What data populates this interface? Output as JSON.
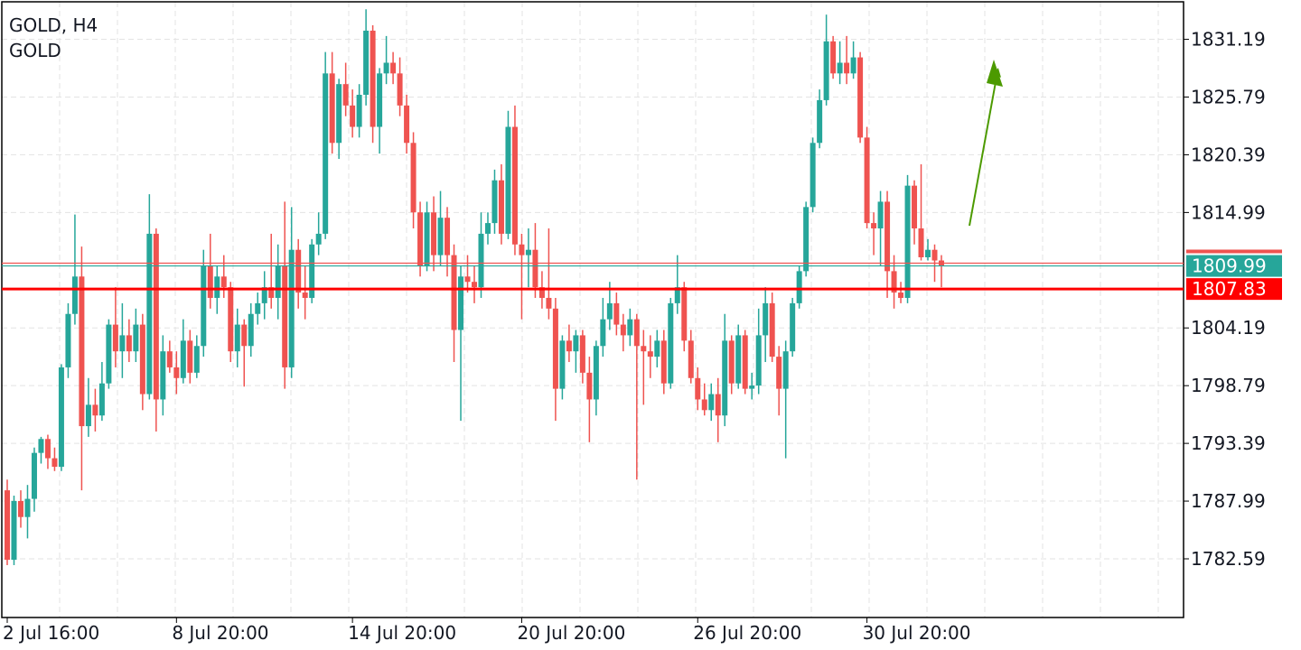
{
  "chart_data": {
    "type": "candlestick",
    "title": "GOLD, H4",
    "subtitle": "GOLD",
    "up_color": "#26a69a",
    "down_color": "#ef5350",
    "ylim": [
      1777.1,
      1834.7
    ],
    "yticks": [
      1831.19,
      1825.79,
      1820.39,
      1814.99,
      1804.19,
      1798.79,
      1793.39,
      1787.99,
      1782.59
    ],
    "grid": true,
    "ask": 1810.25,
    "price_lines": [
      {
        "value": 1809.99,
        "label": "1809.99",
        "color": "#26a69a"
      },
      {
        "value": 1807.83,
        "label": "1807.83",
        "color": "#ff0000"
      }
    ],
    "categories": [
      "2 Jul 16:00",
      null,
      null,
      null,
      null,
      null,
      null,
      null,
      null,
      null,
      null,
      null,
      null,
      null,
      null,
      null,
      null,
      null,
      null,
      null,
      null,
      null,
      null,
      null,
      null,
      "8 Jul 20:00",
      null,
      null,
      null,
      null,
      null,
      null,
      null,
      null,
      null,
      null,
      null,
      null,
      null,
      null,
      null,
      null,
      null,
      null,
      null,
      null,
      null,
      null,
      null,
      null,
      null,
      "14 Jul 20:00",
      null,
      null,
      null,
      null,
      null,
      null,
      null,
      null,
      null,
      null,
      null,
      null,
      null,
      null,
      null,
      null,
      null,
      null,
      null,
      null,
      null,
      null,
      null,
      null,
      "20 Jul 20:00",
      null,
      null,
      null,
      null,
      null,
      null,
      null,
      null,
      null,
      null,
      null,
      null,
      null,
      null,
      null,
      null,
      null,
      null,
      null,
      null,
      null,
      null,
      null,
      null,
      null,
      "26 Jul 20:00",
      null,
      null,
      null,
      null,
      null,
      null,
      null,
      null,
      null,
      null,
      null,
      null,
      null,
      null,
      null,
      null,
      null,
      null,
      null,
      null,
      null,
      null,
      null,
      null,
      "30 Jul 20:00",
      null,
      null,
      null,
      null,
      null,
      null,
      null,
      null,
      null,
      null,
      null
    ],
    "ohlc": [
      [
        1789.0,
        1790.0,
        1782.0,
        1782.5
      ],
      [
        1782.5,
        1788.5,
        1782.0,
        1788.0
      ],
      [
        1788.0,
        1789.0,
        1785.5,
        1786.5
      ],
      [
        1786.5,
        1789.5,
        1784.5,
        1788.2
      ],
      [
        1788.2,
        1793.0,
        1787.0,
        1792.5
      ],
      [
        1792.5,
        1794.0,
        1791.5,
        1793.8
      ],
      [
        1793.8,
        1794.2,
        1791.0,
        1792.0
      ],
      [
        1792.0,
        1793.0,
        1790.8,
        1791.2
      ],
      [
        1791.2,
        1800.8,
        1790.8,
        1800.5
      ],
      [
        1800.5,
        1806.5,
        1799.5,
        1805.5
      ],
      [
        1805.5,
        1814.8,
        1804.5,
        1809.0
      ],
      [
        1809.0,
        1811.8,
        1789.0,
        1795.0
      ],
      [
        1795.0,
        1799.5,
        1794.0,
        1797.0
      ],
      [
        1797.0,
        1798.5,
        1794.5,
        1796.0
      ],
      [
        1796.0,
        1801.0,
        1795.5,
        1799.0
      ],
      [
        1799.0,
        1805.0,
        1798.5,
        1804.5
      ],
      [
        1804.5,
        1808.0,
        1800.5,
        1802.0
      ],
      [
        1802.0,
        1806.5,
        1799.5,
        1803.5
      ],
      [
        1803.5,
        1805.0,
        1801.0,
        1802.0
      ],
      [
        1802.0,
        1806.0,
        1801.0,
        1804.5
      ],
      [
        1804.5,
        1805.5,
        1796.5,
        1798.0
      ],
      [
        1798.0,
        1816.7,
        1797.5,
        1813.0
      ],
      [
        1813.0,
        1813.5,
        1794.5,
        1797.5
      ],
      [
        1797.5,
        1803.5,
        1796.0,
        1802.0
      ],
      [
        1802.0,
        1803.0,
        1800.0,
        1800.5
      ],
      [
        1800.5,
        1802.0,
        1798.0,
        1799.5
      ],
      [
        1799.5,
        1805.0,
        1799.0,
        1803.0
      ],
      [
        1803.0,
        1804.0,
        1799.0,
        1800.0
      ],
      [
        1800.0,
        1803.5,
        1799.5,
        1802.5
      ],
      [
        1802.5,
        1811.5,
        1801.5,
        1810.0
      ],
      [
        1810.0,
        1813.0,
        1806.0,
        1807.0
      ],
      [
        1807.0,
        1810.0,
        1805.5,
        1809.0
      ],
      [
        1809.0,
        1811.0,
        1807.0,
        1808.0
      ],
      [
        1808.0,
        1808.5,
        1801.0,
        1802.0
      ],
      [
        1802.0,
        1806.0,
        1800.5,
        1804.5
      ],
      [
        1804.5,
        1805.0,
        1798.7,
        1802.5
      ],
      [
        1802.5,
        1806.5,
        1801.5,
        1805.5
      ],
      [
        1805.5,
        1807.5,
        1804.5,
        1806.5
      ],
      [
        1806.5,
        1809.5,
        1805.0,
        1808.0
      ],
      [
        1808.0,
        1813.0,
        1806.0,
        1807.0
      ],
      [
        1807.0,
        1812.0,
        1805.0,
        1810.0
      ],
      [
        1810.0,
        1816.0,
        1798.5,
        1800.5
      ],
      [
        1800.5,
        1815.5,
        1799.5,
        1811.5
      ],
      [
        1811.5,
        1812.5,
        1806.0,
        1807.5
      ],
      [
        1807.5,
        1810.0,
        1805.0,
        1807.0
      ],
      [
        1807.0,
        1812.5,
        1806.5,
        1812.0
      ],
      [
        1812.0,
        1815.0,
        1811.0,
        1813.0
      ],
      [
        1813.0,
        1830.0,
        1812.5,
        1828.0
      ],
      [
        1828.0,
        1830.0,
        1820.5,
        1821.5
      ],
      [
        1821.5,
        1827.5,
        1820.0,
        1827.0
      ],
      [
        1827.0,
        1829.0,
        1824.0,
        1825.0
      ],
      [
        1825.0,
        1826.5,
        1822.0,
        1823.0
      ],
      [
        1823.0,
        1827.0,
        1822.0,
        1826.0
      ],
      [
        1826.0,
        1834.0,
        1825.0,
        1832.0
      ],
      [
        1832.0,
        1832.5,
        1821.5,
        1823.0
      ],
      [
        1823.0,
        1828.5,
        1820.5,
        1828.0
      ],
      [
        1828.0,
        1831.5,
        1827.0,
        1829.0
      ],
      [
        1829.0,
        1830.0,
        1827.0,
        1828.0
      ],
      [
        1828.0,
        1829.5,
        1824.0,
        1825.0
      ],
      [
        1825.0,
        1826.0,
        1820.5,
        1821.5
      ],
      [
        1821.5,
        1822.5,
        1813.5,
        1815.0
      ],
      [
        1815.0,
        1816.0,
        1809.0,
        1810.0
      ],
      [
        1810.0,
        1816.0,
        1809.5,
        1815.0
      ],
      [
        1815.0,
        1816.5,
        1809.5,
        1811.0
      ],
      [
        1811.0,
        1817.0,
        1810.0,
        1814.5
      ],
      [
        1814.5,
        1815.5,
        1809.0,
        1811.0
      ],
      [
        1811.0,
        1812.0,
        1801.0,
        1804.0
      ],
      [
        1804.0,
        1810.0,
        1795.5,
        1809.0
      ],
      [
        1809.0,
        1811.0,
        1807.5,
        1808.5
      ],
      [
        1808.5,
        1810.0,
        1806.5,
        1808.0
      ],
      [
        1808.0,
        1815.0,
        1807.0,
        1813.0
      ],
      [
        1813.0,
        1815.0,
        1812.0,
        1814.0
      ],
      [
        1814.0,
        1819.0,
        1813.0,
        1818.0
      ],
      [
        1818.0,
        1819.5,
        1812.0,
        1813.0
      ],
      [
        1813.0,
        1824.5,
        1812.5,
        1823.0
      ],
      [
        1823.0,
        1825.0,
        1811.0,
        1812.0
      ],
      [
        1812.0,
        1813.0,
        1805.0,
        1811.0
      ],
      [
        1811.0,
        1813.5,
        1808.0,
        1811.5
      ],
      [
        1811.5,
        1814.0,
        1807.0,
        1808.0
      ],
      [
        1808.0,
        1809.5,
        1806.0,
        1807.0
      ],
      [
        1807.0,
        1813.5,
        1805.0,
        1806.0
      ],
      [
        1806.0,
        1807.0,
        1795.5,
        1798.5
      ],
      [
        1798.5,
        1803.5,
        1797.5,
        1803.0
      ],
      [
        1803.0,
        1804.5,
        1801.0,
        1802.0
      ],
      [
        1802.0,
        1804.0,
        1800.0,
        1803.5
      ],
      [
        1803.5,
        1804.0,
        1799.0,
        1800.0
      ],
      [
        1800.0,
        1801.5,
        1793.5,
        1797.5
      ],
      [
        1797.5,
        1803.0,
        1796.0,
        1802.5
      ],
      [
        1802.5,
        1807.0,
        1801.5,
        1805.0
      ],
      [
        1805.0,
        1808.5,
        1804.0,
        1806.5
      ],
      [
        1806.5,
        1807.5,
        1803.5,
        1804.5
      ],
      [
        1804.5,
        1805.5,
        1802.0,
        1803.5
      ],
      [
        1803.5,
        1806.0,
        1802.5,
        1805.0
      ],
      [
        1805.0,
        1805.5,
        1790.0,
        1802.5
      ],
      [
        1802.5,
        1804.0,
        1797.0,
        1802.0
      ],
      [
        1802.0,
        1803.5,
        1799.5,
        1801.5
      ],
      [
        1801.5,
        1804.0,
        1800.5,
        1803.0
      ],
      [
        1803.0,
        1804.0,
        1798.0,
        1799.0
      ],
      [
        1799.0,
        1807.0,
        1798.5,
        1806.5
      ],
      [
        1806.5,
        1811.0,
        1805.5,
        1808.0
      ],
      [
        1808.0,
        1808.5,
        1802.0,
        1803.0
      ],
      [
        1803.0,
        1804.0,
        1799.0,
        1799.5
      ],
      [
        1799.5,
        1800.5,
        1796.5,
        1797.5
      ],
      [
        1797.5,
        1799.0,
        1796.0,
        1796.5
      ],
      [
        1796.5,
        1799.0,
        1795.5,
        1798.0
      ],
      [
        1798.0,
        1799.5,
        1793.5,
        1796.0
      ],
      [
        1796.0,
        1805.5,
        1795.0,
        1803.0
      ],
      [
        1803.0,
        1803.5,
        1798.0,
        1799.0
      ],
      [
        1799.0,
        1804.5,
        1798.5,
        1803.5
      ],
      [
        1803.5,
        1804.0,
        1798.0,
        1798.5
      ],
      [
        1798.5,
        1800.0,
        1797.5,
        1798.8
      ],
      [
        1798.8,
        1806.0,
        1798.0,
        1803.5
      ],
      [
        1803.5,
        1808.0,
        1801.0,
        1806.5
      ],
      [
        1806.5,
        1807.5,
        1801.0,
        1801.5
      ],
      [
        1801.5,
        1802.5,
        1796.0,
        1798.5
      ],
      [
        1798.5,
        1803.0,
        1792.0,
        1802.0
      ],
      [
        1802.0,
        1807.0,
        1801.5,
        1806.5
      ],
      [
        1806.5,
        1810.0,
        1806.0,
        1809.5
      ],
      [
        1809.5,
        1816.0,
        1809.0,
        1815.5
      ],
      [
        1815.5,
        1822.0,
        1815.0,
        1821.5
      ],
      [
        1821.5,
        1826.5,
        1821.0,
        1825.5
      ],
      [
        1825.5,
        1833.5,
        1825.0,
        1831.0
      ],
      [
        1831.0,
        1831.5,
        1827.5,
        1828.0
      ],
      [
        1828.0,
        1831.0,
        1827.0,
        1829.0
      ],
      [
        1829.0,
        1831.5,
        1827.0,
        1828.0
      ],
      [
        1828.0,
        1831.0,
        1827.5,
        1829.5
      ],
      [
        1829.5,
        1830.0,
        1821.5,
        1822.0
      ],
      [
        1822.0,
        1823.0,
        1813.5,
        1814.0
      ],
      [
        1814.0,
        1815.0,
        1811.0,
        1813.5
      ],
      [
        1813.5,
        1817.0,
        1810.0,
        1816.0
      ],
      [
        1816.0,
        1817.0,
        1807.0,
        1809.5
      ],
      [
        1809.5,
        1811.0,
        1806.0,
        1807.5
      ],
      [
        1807.5,
        1808.5,
        1806.5,
        1807.0
      ],
      [
        1807.0,
        1818.5,
        1806.5,
        1817.5
      ],
      [
        1817.5,
        1818.0,
        1812.0,
        1813.5
      ],
      [
        1813.5,
        1819.5,
        1810.5,
        1810.8
      ],
      [
        1810.8,
        1812.5,
        1810.5,
        1811.5
      ],
      [
        1811.5,
        1812.0,
        1808.5,
        1810.5
      ],
      [
        1810.5,
        1811.0,
        1808.0,
        1809.99
      ]
    ]
  }
}
